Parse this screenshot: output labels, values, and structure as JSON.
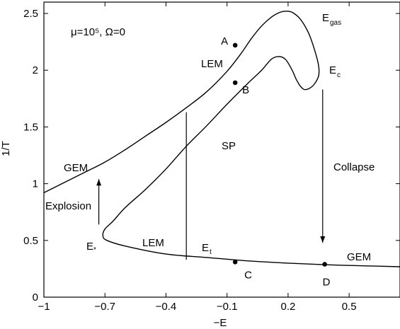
{
  "chart_data": {
    "type": "line",
    "xlabel": "−E",
    "ylabel": "1/T",
    "xlim": [
      -1.0,
      0.75
    ],
    "ylim": [
      0,
      2.6
    ],
    "x_ticks": [
      {
        "v": -1.0,
        "label": "−1"
      },
      {
        "v": -0.7,
        "label": "−0.7"
      },
      {
        "v": -0.4,
        "label": "−0.4"
      },
      {
        "v": -0.1,
        "label": "−0.1"
      },
      {
        "v": 0.2,
        "label": "0.2"
      },
      {
        "v": 0.5,
        "label": "0.5"
      }
    ],
    "y_ticks": [
      {
        "v": 0,
        "label": "0"
      },
      {
        "v": 0.5,
        "label": "0.5"
      },
      {
        "v": 1.0,
        "label": "1"
      },
      {
        "v": 1.5,
        "label": "1.5"
      },
      {
        "v": 2.0,
        "label": "2"
      },
      {
        "v": 2.5,
        "label": "2.5"
      }
    ],
    "grid": false,
    "series": [
      {
        "points": [
          [
            -1.0,
            0.92
          ],
          [
            -0.9,
            1.01
          ],
          [
            -0.8,
            1.1
          ],
          [
            -0.7,
            1.19
          ],
          [
            -0.6,
            1.3
          ],
          [
            -0.5,
            1.42
          ],
          [
            -0.4,
            1.54
          ],
          [
            -0.3,
            1.67
          ],
          [
            -0.2,
            1.81
          ],
          [
            -0.1,
            1.99
          ],
          [
            -0.03,
            2.15
          ],
          [
            0.02,
            2.28
          ],
          [
            0.07,
            2.39
          ],
          [
            0.12,
            2.47
          ],
          [
            0.16,
            2.51
          ],
          [
            0.19,
            2.52
          ],
          [
            0.22,
            2.51
          ],
          [
            0.26,
            2.45
          ],
          [
            0.3,
            2.33
          ],
          [
            0.33,
            2.18
          ],
          [
            0.35,
            2.04
          ],
          [
            0.35,
            1.95
          ],
          [
            0.33,
            1.88
          ],
          [
            0.305,
            1.84
          ],
          [
            0.28,
            1.83
          ],
          [
            0.26,
            1.86
          ],
          [
            0.24,
            1.92
          ],
          [
            0.22,
            2.0
          ],
          [
            0.19,
            2.09
          ],
          [
            0.16,
            2.12
          ],
          [
            0.12,
            2.1
          ],
          [
            0.07,
            2.0
          ],
          [
            0.0,
            1.88
          ],
          [
            -0.1,
            1.7
          ],
          [
            -0.2,
            1.51
          ],
          [
            -0.3,
            1.33
          ],
          [
            -0.4,
            1.13
          ],
          [
            -0.5,
            0.95
          ],
          [
            -0.6,
            0.79
          ],
          [
            -0.66,
            0.67
          ],
          [
            -0.7,
            0.6
          ],
          [
            -0.71,
            0.54
          ],
          [
            -0.69,
            0.5
          ],
          [
            -0.6,
            0.45
          ],
          [
            -0.4,
            0.38
          ],
          [
            -0.2,
            0.35
          ],
          [
            0.0,
            0.32
          ],
          [
            0.2,
            0.3
          ],
          [
            0.4,
            0.285
          ],
          [
            0.6,
            0.275
          ],
          [
            0.75,
            0.268
          ]
        ]
      }
    ],
    "points": [
      {
        "label": "A",
        "x": -0.06,
        "y": 2.22
      },
      {
        "label": "B",
        "x": -0.06,
        "y": 1.89
      },
      {
        "label": "C",
        "x": -0.06,
        "y": 0.31
      },
      {
        "label": "D",
        "x": 0.38,
        "y": 0.29
      }
    ],
    "vertical_line": {
      "x": -0.3,
      "y_from": 0.33,
      "y_to": 1.63
    },
    "arrows": [
      {
        "name": "explosion-arrow",
        "x": -0.73,
        "y_from": 0.64,
        "y_to": 1.04
      },
      {
        "name": "collapse-arrow",
        "x": 0.37,
        "y_from": 1.83,
        "y_to": 0.48
      }
    ],
    "annotations": {
      "params": "μ=10⁵, Ω=0",
      "lem_upper": "LEM",
      "lem_lower": "LEM",
      "sp": "SP",
      "gem_left": "GEM",
      "gem_right": "GEM",
      "explosion": "Explosion",
      "collapse": "Collapse",
      "e_gas": "E",
      "e_gas_sub": "gas",
      "e_c": "E",
      "e_c_sub": "c",
      "e_t": "E",
      "e_t_sub": "t",
      "e_star": "E",
      "e_star_sub": "*"
    }
  }
}
